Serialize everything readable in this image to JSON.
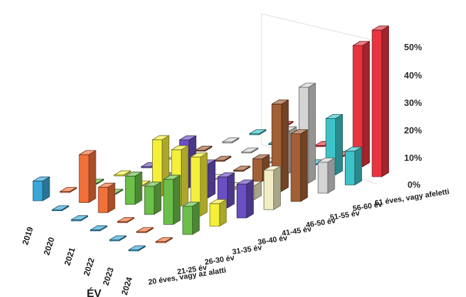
{
  "chart_data": {
    "type": "bar3d",
    "title": "",
    "x_axis_title": "ÉV",
    "categories_years": [
      "2019",
      "2020",
      "2021",
      "2022",
      "2023",
      "2024"
    ],
    "categories_age": [
      "20 éves, vagy az alatti",
      "21-25 év",
      "26-30 év",
      "31-35 év",
      "36-40 év",
      "41-45 év",
      "46-50 év",
      "51-55 év",
      "56-60 év",
      "61 éves, vagy afeletti"
    ],
    "zlim": [
      0,
      50
    ],
    "z_ticks": [
      "0%",
      "10%",
      "20%",
      "30%",
      "40%",
      "50%"
    ],
    "unit": "%",
    "series_colors": {
      "20 éves, vagy az alatti": "#3aa7d8",
      "21-25 év": "#f2703a",
      "26-30 év": "#6cc04a",
      "31-35 év": "#f5ef3c",
      "36-40 év": "#6a4fc2",
      "41-45 év": "#f1ecc4",
      "46-50 év": "#a35f35",
      "51-55 év": "#d4d4d4",
      "56-60 év": "#3cc3c8",
      "61 éves, vagy afeletti": "#e8343f"
    },
    "values": [
      [
        7,
        0,
        0,
        0,
        0,
        0,
        0,
        0,
        0,
        0
      ],
      [
        0,
        17,
        0,
        0,
        0,
        0,
        0,
        0,
        0,
        0
      ],
      [
        0,
        9,
        10,
        20,
        17,
        0,
        0,
        0,
        0,
        0
      ],
      [
        0,
        0,
        10,
        20,
        12,
        1,
        8,
        15,
        0,
        0
      ],
      [
        0,
        0,
        16,
        21,
        11,
        5,
        31,
        34,
        20,
        43
      ],
      [
        0,
        0,
        10,
        8,
        12,
        14,
        24,
        11,
        12,
        52
      ]
    ]
  }
}
